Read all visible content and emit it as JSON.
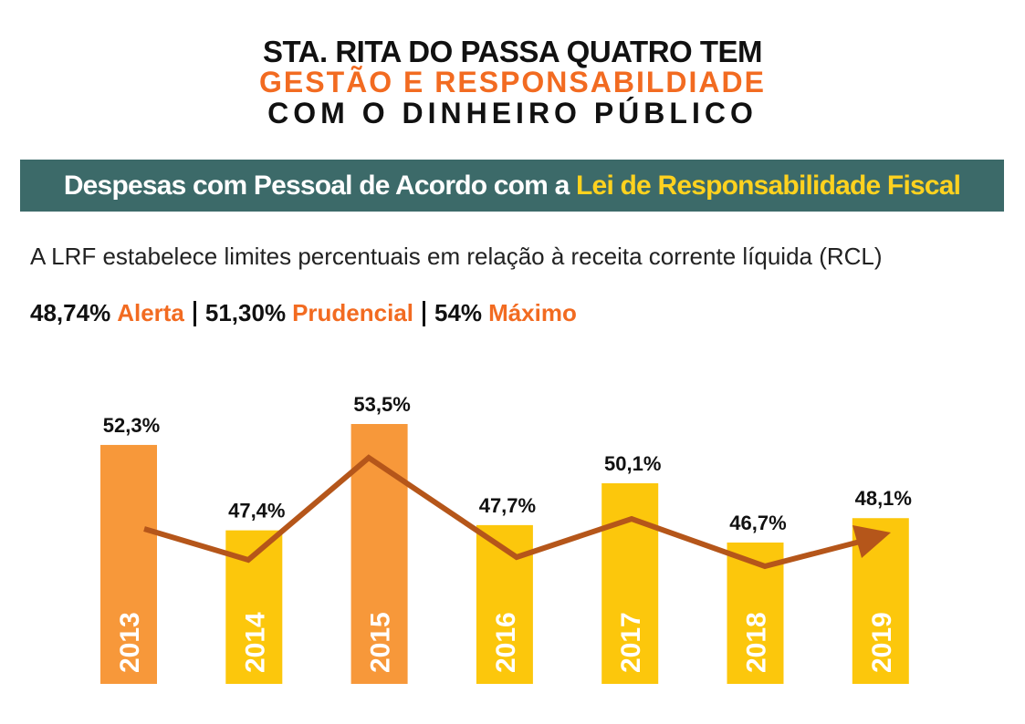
{
  "header": {
    "line1": "STA. RITA DO PASSA QUATRO TEM",
    "line2": "GESTÃO E RESPONSABILDIADE",
    "line3": "COM O DINHEIRO PÚBLICO"
  },
  "banner": {
    "text": "Despesas com Pessoal de Acordo com a",
    "highlight": "Lei de Responsabilidade Fiscal"
  },
  "description": "A LRF estabelece limites percentuais em relação à receita corrente líquida (RCL)",
  "limits": [
    {
      "label": "48,74%",
      "name": "Alerta"
    },
    {
      "label": "51,30%",
      "name": "Prudencial"
    },
    {
      "label": "54%",
      "name": "Máximo"
    }
  ],
  "chart_data": {
    "type": "bar",
    "categories": [
      "2013",
      "2014",
      "2015",
      "2016",
      "2017",
      "2018",
      "2019"
    ],
    "values": [
      52.3,
      47.4,
      53.5,
      47.7,
      50.1,
      46.7,
      48.1
    ],
    "value_labels": [
      "52,3%",
      "47,4%",
      "53,5%",
      "47,7%",
      "50,1%",
      "46,7%",
      "48,1%"
    ],
    "colors": [
      "#f7983a",
      "#fcc70c",
      "#f7983a",
      "#fcc70c",
      "#fcc70c",
      "#fcc70c",
      "#fcc70c"
    ]
  }
}
